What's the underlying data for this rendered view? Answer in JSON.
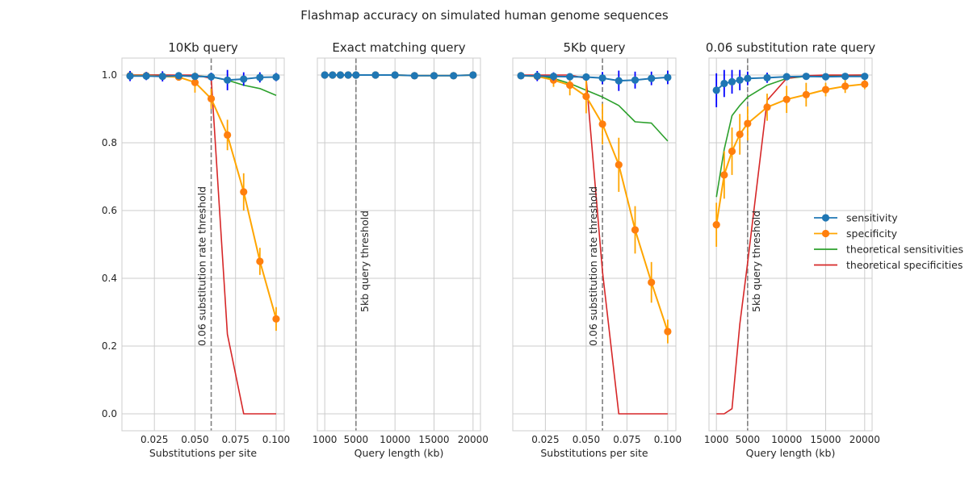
{
  "figure_title": "Flashmap accuracy on simulated human genome sequences",
  "legend": {
    "placement": "center-right",
    "entries": [
      {
        "label": "sensitivity",
        "color": "#1f77b4",
        "marker": "circle"
      },
      {
        "label": "specificity",
        "color": "#ff7f0e",
        "marker": "circle"
      },
      {
        "label": "theoretical sensitivities",
        "color": "#2ca02c",
        "marker": "none"
      },
      {
        "label": "theoretical specificities",
        "color": "#d62728",
        "marker": "none"
      }
    ]
  },
  "colors": {
    "sensitivity": "#1f77b4",
    "sensitivity_err": "#0000ff",
    "specificity": "#ff7f0e",
    "specificity_line": "#ffa500",
    "theo_sens": "#2ca02c",
    "theo_spec": "#d62728",
    "threshold": "#808080",
    "grid": "#cccccc"
  },
  "chart_data": [
    {
      "type": "line",
      "title": "10Kb query",
      "xlabel": "Substitutions per site",
      "ylabel": "",
      "xlim": [
        0.005,
        0.105
      ],
      "ylim": [
        -0.05,
        1.05
      ],
      "xticks": [
        0.025,
        0.05,
        0.075,
        0.1
      ],
      "xtick_labels": [
        "0.025",
        "0.050",
        "0.075",
        "0.100"
      ],
      "yticks": [
        0.0,
        0.2,
        0.4,
        0.6,
        0.8,
        1.0
      ],
      "ytick_labels": [
        "0.0",
        "0.2",
        "0.4",
        "0.6",
        "0.8",
        "1.0"
      ],
      "grid": true,
      "threshold": {
        "x": 0.06,
        "label": "0.06 substitution rate threshold"
      },
      "series": [
        {
          "name": "sensitivity",
          "x": [
            0.01,
            0.02,
            0.03,
            0.04,
            0.05,
            0.06,
            0.07,
            0.08,
            0.09,
            0.1
          ],
          "y": [
            0.997,
            0.997,
            0.996,
            0.998,
            0.996,
            0.995,
            0.985,
            0.988,
            0.993,
            0.994
          ],
          "err": [
            0.015,
            0.012,
            0.015,
            0.008,
            0.01,
            0.012,
            0.03,
            0.02,
            0.015,
            0.012
          ]
        },
        {
          "name": "specificity",
          "x": [
            0.01,
            0.02,
            0.03,
            0.04,
            0.05,
            0.06,
            0.07,
            0.08,
            0.09,
            0.1
          ],
          "y": [
            0.998,
            0.998,
            0.996,
            0.994,
            0.978,
            0.93,
            0.823,
            0.655,
            0.45,
            0.28
          ],
          "err": [
            0.005,
            0.005,
            0.008,
            0.01,
            0.03,
            0.03,
            0.045,
            0.055,
            0.04,
            0.035
          ]
        },
        {
          "name": "theoretical sensitivities",
          "x": [
            0.01,
            0.02,
            0.03,
            0.04,
            0.05,
            0.06,
            0.07,
            0.08,
            0.09,
            0.1
          ],
          "y": [
            1.0,
            1.0,
            1.0,
            0.999,
            0.998,
            0.994,
            0.985,
            0.97,
            0.96,
            0.94
          ]
        },
        {
          "name": "theoretical specificities",
          "x": [
            0.01,
            0.02,
            0.03,
            0.04,
            0.05,
            0.06,
            0.07,
            0.08,
            0.09,
            0.1
          ],
          "y": [
            1.0,
            1.0,
            1.0,
            1.0,
            1.0,
            0.99,
            0.235,
            0.0,
            0.0,
            0.0
          ]
        }
      ]
    },
    {
      "type": "line",
      "title": "Exact matching query",
      "xlabel": "Query length (kb)",
      "ylabel": "",
      "xlim": [
        50,
        20950
      ],
      "ylim": [
        -0.05,
        1.05
      ],
      "xticks": [
        1000,
        5000,
        10000,
        15000,
        20000
      ],
      "xtick_labels": [
        "1000",
        "5000",
        "10000",
        "15000",
        "20000"
      ],
      "yticks": [
        0.0,
        0.2,
        0.4,
        0.6,
        0.8,
        1.0
      ],
      "ytick_labels": [],
      "grid": true,
      "threshold": {
        "x": 5000,
        "label": "5kb query threshold"
      },
      "series": [
        {
          "name": "sensitivity",
          "x": [
            1000,
            2000,
            3000,
            4000,
            5000,
            7500,
            10000,
            12500,
            15000,
            17500,
            20000
          ],
          "y": [
            1.0,
            1.0,
            1.0,
            1.0,
            1.0,
            1.0,
            1.0,
            0.998,
            0.998,
            0.998,
            1.0
          ],
          "err": [
            0.003,
            0.003,
            0.003,
            0.003,
            0.003,
            0.003,
            0.003,
            0.004,
            0.004,
            0.004,
            0.003
          ]
        },
        {
          "name": "specificity",
          "x": [
            1000,
            2000,
            3000,
            4000,
            5000,
            7500,
            10000,
            12500,
            15000,
            17500,
            20000
          ],
          "y": [
            1.0,
            1.0,
            1.0,
            1.0,
            1.0,
            1.0,
            1.0,
            0.998,
            0.998,
            0.998,
            1.0
          ],
          "err": [
            0.003,
            0.003,
            0.003,
            0.003,
            0.003,
            0.003,
            0.003,
            0.004,
            0.004,
            0.004,
            0.003
          ]
        }
      ]
    },
    {
      "type": "line",
      "title": "5Kb query",
      "xlabel": "Substitutions per site",
      "ylabel": "",
      "xlim": [
        0.005,
        0.105
      ],
      "ylim": [
        -0.05,
        1.05
      ],
      "xticks": [
        0.025,
        0.05,
        0.075,
        0.1
      ],
      "xtick_labels": [
        "0.025",
        "0.050",
        "0.075",
        "0.100"
      ],
      "yticks": [
        0.0,
        0.2,
        0.4,
        0.6,
        0.8,
        1.0
      ],
      "ytick_labels": [],
      "grid": true,
      "threshold": {
        "x": 0.06,
        "label": "0.06 substitution rate threshold"
      },
      "series": [
        {
          "name": "sensitivity",
          "x": [
            0.01,
            0.02,
            0.03,
            0.04,
            0.05,
            0.06,
            0.07,
            0.08,
            0.09,
            0.1
          ],
          "y": [
            0.998,
            0.997,
            0.996,
            0.995,
            0.994,
            0.991,
            0.983,
            0.985,
            0.99,
            0.993
          ],
          "err": [
            0.008,
            0.015,
            0.012,
            0.01,
            0.01,
            0.018,
            0.03,
            0.025,
            0.02,
            0.02
          ]
        },
        {
          "name": "specificity",
          "x": [
            0.01,
            0.02,
            0.03,
            0.04,
            0.05,
            0.06,
            0.07,
            0.08,
            0.09,
            0.1
          ],
          "y": [
            0.998,
            0.996,
            0.985,
            0.97,
            0.937,
            0.855,
            0.735,
            0.543,
            0.388,
            0.243
          ],
          "err": [
            0.005,
            0.01,
            0.02,
            0.03,
            0.05,
            0.06,
            0.08,
            0.07,
            0.06,
            0.035
          ]
        },
        {
          "name": "theoretical sensitivities",
          "x": [
            0.01,
            0.02,
            0.03,
            0.04,
            0.05,
            0.06,
            0.07,
            0.08,
            0.09,
            0.1
          ],
          "y": [
            1.0,
            0.998,
            0.99,
            0.975,
            0.955,
            0.935,
            0.91,
            0.862,
            0.858,
            0.805
          ]
        },
        {
          "name": "theoretical specificities",
          "x": [
            0.01,
            0.02,
            0.03,
            0.04,
            0.05,
            0.06,
            0.07,
            0.08,
            0.09,
            0.1
          ],
          "y": [
            1.0,
            1.0,
            1.0,
            1.0,
            0.99,
            0.42,
            0.0,
            0.0,
            0.0,
            0.0
          ]
        }
      ]
    },
    {
      "type": "line",
      "title": "0.06 substitution rate query",
      "xlabel": "Query length (kb)",
      "ylabel": "",
      "xlim": [
        50,
        20950
      ],
      "ylim": [
        -0.05,
        1.05
      ],
      "xticks": [
        1000,
        5000,
        10000,
        15000,
        20000
      ],
      "xtick_labels": [
        "1000",
        "5000",
        "10000",
        "15000",
        "20000"
      ],
      "yticks": [
        0.0,
        0.2,
        0.4,
        0.6,
        0.8,
        1.0
      ],
      "ytick_labels": [],
      "grid": true,
      "threshold": {
        "x": 5000,
        "label": "5kb query threshold"
      },
      "series": [
        {
          "name": "sensitivity",
          "x": [
            1000,
            2000,
            3000,
            4000,
            5000,
            7500,
            10000,
            12500,
            15000,
            17500,
            20000
          ],
          "y": [
            0.955,
            0.975,
            0.98,
            0.985,
            0.99,
            0.992,
            0.995,
            0.996,
            0.995,
            0.996,
            0.996
          ],
          "err": [
            0.05,
            0.04,
            0.035,
            0.03,
            0.02,
            0.015,
            0.01,
            0.01,
            0.008,
            0.008,
            0.008
          ]
        },
        {
          "name": "specificity",
          "x": [
            1000,
            2000,
            3000,
            4000,
            5000,
            7500,
            10000,
            12500,
            15000,
            17500,
            20000
          ],
          "y": [
            0.558,
            0.705,
            0.775,
            0.825,
            0.857,
            0.905,
            0.928,
            0.942,
            0.957,
            0.967,
            0.973
          ],
          "err": [
            0.065,
            0.07,
            0.07,
            0.06,
            0.05,
            0.04,
            0.04,
            0.035,
            0.02,
            0.02,
            0.015
          ]
        },
        {
          "name": "theoretical sensitivities",
          "x": [
            1000,
            2000,
            3000,
            4000,
            5000,
            7500,
            10000,
            12500,
            15000,
            17500,
            20000
          ],
          "y": [
            0.64,
            0.78,
            0.88,
            0.91,
            0.935,
            0.97,
            0.99,
            0.996,
            0.998,
            0.999,
            1.0
          ]
        },
        {
          "name": "theoretical specificities",
          "x": [
            1000,
            2000,
            3000,
            4000,
            5000,
            7500,
            10000,
            12500,
            15000,
            17500,
            20000
          ],
          "y": [
            0.0,
            0.0,
            0.015,
            0.265,
            0.445,
            0.925,
            0.99,
            0.998,
            1.0,
            1.0,
            1.0
          ]
        }
      ]
    }
  ]
}
